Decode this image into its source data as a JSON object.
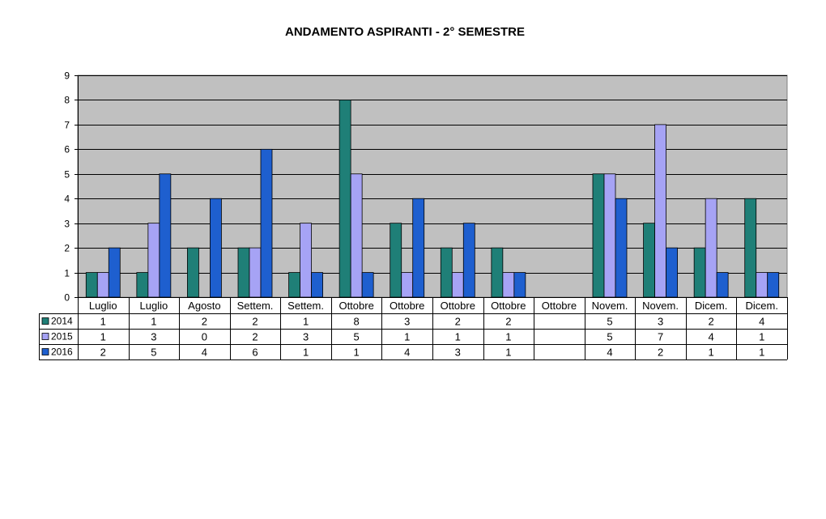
{
  "chart_data": {
    "type": "bar",
    "title": "ANDAMENTO ASPIRANTI -  2° SEMESTRE",
    "categories": [
      "Luglio",
      "Luglio",
      "Agosto",
      "Settem.",
      "Settem.",
      "Ottobre",
      "Ottobre",
      "Ottobre",
      "Ottobre",
      "Ottobre",
      "Novem.",
      "Novem.",
      "Dicem.",
      "Dicem."
    ],
    "series": [
      {
        "name": "2014",
        "color": "#1F7F77",
        "values": [
          1,
          1,
          2,
          2,
          1,
          8,
          3,
          2,
          2,
          null,
          5,
          3,
          2,
          4
        ]
      },
      {
        "name": "2015",
        "color": "#A6A3F5",
        "values": [
          1,
          3,
          0,
          2,
          3,
          5,
          1,
          1,
          1,
          null,
          5,
          7,
          4,
          1
        ]
      },
      {
        "name": "2016",
        "color": "#1E5FCF",
        "values": [
          2,
          5,
          4,
          6,
          1,
          1,
          4,
          3,
          1,
          null,
          4,
          2,
          1,
          1
        ]
      }
    ],
    "ylim": [
      0,
      9
    ],
    "yticks": [
      0,
      1,
      2,
      3,
      4,
      5,
      6,
      7,
      8,
      9
    ],
    "grid": true,
    "plot_background": "#C0C0C0",
    "legend": "data-table"
  }
}
